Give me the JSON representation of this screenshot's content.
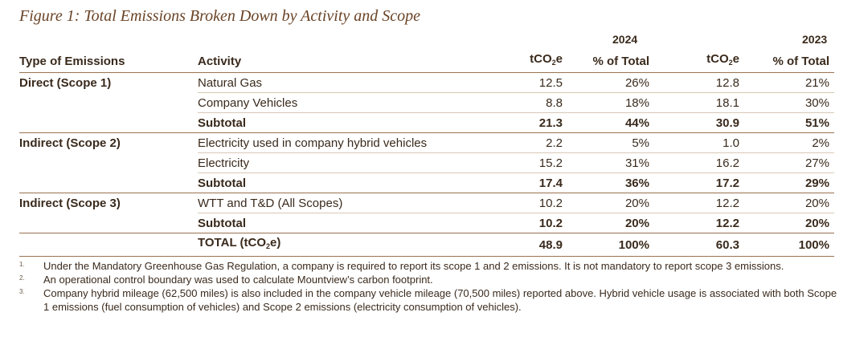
{
  "figure": {
    "title": "Figure 1: Total Emissions Broken Down by Activity and Scope",
    "year_a": "2024",
    "year_b": "2023"
  },
  "table": {
    "headers": {
      "type": "Type of Emissions",
      "activity": "Activity",
      "tco2e_prefix": "tCO",
      "tco2e_sub": "2",
      "tco2e_suffix": "e",
      "pct": "% of Total"
    },
    "groups": [
      {
        "type": "Direct (Scope 1)",
        "rows": [
          {
            "activity": "Natural Gas",
            "t2024": "12.5",
            "p2024": "26%",
            "t2023": "12.8",
            "p2023": "21%"
          },
          {
            "activity": "Company Vehicles",
            "t2024": "8.8",
            "p2024": "18%",
            "t2023": "18.1",
            "p2023": "30%"
          }
        ],
        "subtotal": {
          "label": "Subtotal",
          "t2024": "21.3",
          "p2024": "44%",
          "t2023": "30.9",
          "p2023": "51%"
        }
      },
      {
        "type": "Indirect (Scope 2)",
        "rows": [
          {
            "activity": "Electricity used in company hybrid vehicles",
            "t2024": "2.2",
            "p2024": "5%",
            "t2023": "1.0",
            "p2023": "2%"
          },
          {
            "activity": "Electricity",
            "t2024": "15.2",
            "p2024": "31%",
            "t2023": "16.2",
            "p2023": "27%"
          }
        ],
        "subtotal": {
          "label": "Subtotal",
          "t2024": "17.4",
          "p2024": "36%",
          "t2023": "17.2",
          "p2023": "29%"
        }
      },
      {
        "type": "Indirect (Scope 3)",
        "rows": [
          {
            "activity": "WTT and T&D (All Scopes)",
            "t2024": "10.2",
            "p2024": "20%",
            "t2023": "12.2",
            "p2023": "20%"
          }
        ],
        "subtotal": {
          "label": "Subtotal",
          "t2024": "10.2",
          "p2024": "20%",
          "t2023": "12.2",
          "p2023": "20%"
        }
      }
    ],
    "total": {
      "label_prefix": "TOTAL (tCO",
      "label_sub": "2",
      "label_suffix": "e)",
      "t2024": "48.9",
      "p2024": "100%",
      "t2023": "60.3",
      "p2023": "100%"
    }
  },
  "footnotes": [
    {
      "num": "1.",
      "text": "Under the Mandatory Greenhouse Gas Regulation, a company is required to report its scope 1 and 2 emissions. It is not mandatory to report scope 3 emissions."
    },
    {
      "num": "2.",
      "text": "An operational control boundary was used to calculate Mountview’s carbon footprint."
    },
    {
      "num": "3.",
      "text": "Company hybrid mileage (62,500 miles) is also included in the company vehicle mileage (70,500 miles) reported above. Hybrid vehicle usage is associated with both Scope 1 emissions (fuel consumption of vehicles) and Scope 2 emissions (electricity consumption of vehicles)."
    }
  ],
  "colors": {
    "title": "#6a4326",
    "rule": "#9a7350",
    "text": "#3a2a1c"
  }
}
